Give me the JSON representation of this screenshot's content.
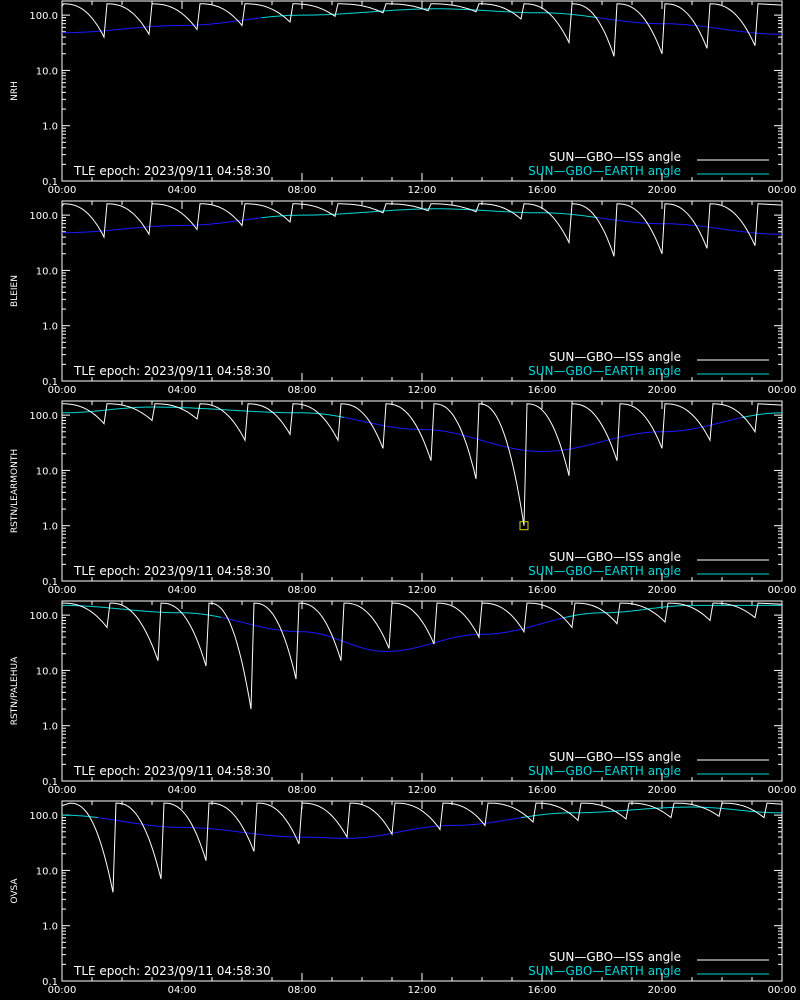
{
  "colors": {
    "background": "#000000",
    "axes": "#ffffff",
    "iss": "#ffffff",
    "earth": "#00d8d8",
    "earth_deep": "#1a1aff",
    "marker": "#d8d800"
  },
  "time_ticks": [
    "00:00",
    "04:00",
    "08:00",
    "12:00",
    "16:00",
    "20:00",
    "00:00"
  ],
  "y_ticks": [
    "0.1",
    "1.0",
    "10.0",
    "100.0"
  ],
  "epoch_label": "TLE epoch: 2023/09/11 04:58:30",
  "legend": {
    "iss": "SUN—GBO—ISS angle",
    "earth": "SUN—GBO—EARTH angle"
  },
  "chart_data": [
    {
      "type": "line",
      "ylabel": "NRH",
      "yscale": "log",
      "ylim": [
        0.1,
        180
      ],
      "xlim_hours": [
        0,
        24
      ],
      "grid": false,
      "legend_position": "bottom-right",
      "earth_angle": {
        "hours": [
          0,
          4,
          8,
          12.5,
          16,
          20,
          24
        ],
        "values": [
          48,
          65,
          100,
          130,
          110,
          70,
          45
        ]
      },
      "iss_angle_minima": {
        "hours": [
          1.4,
          2.9,
          4.5,
          6.0,
          7.6,
          9.1,
          10.7,
          12.2,
          13.8,
          15.3,
          16.9,
          18.4,
          20.0,
          21.5,
          23.1
        ],
        "values": [
          40,
          45,
          55,
          65,
          75,
          95,
          110,
          120,
          115,
          85,
          32,
          18,
          20,
          25,
          28
        ]
      },
      "iss_angle_max": 160,
      "flagged_point": null
    },
    {
      "type": "line",
      "ylabel": "BLEIEN",
      "yscale": "log",
      "ylim": [
        0.1,
        180
      ],
      "xlim_hours": [
        0,
        24
      ],
      "grid": false,
      "legend_position": "bottom-right",
      "earth_angle": {
        "hours": [
          0,
          4,
          8,
          12.5,
          16,
          20,
          24
        ],
        "values": [
          48,
          65,
          100,
          130,
          110,
          70,
          45
        ]
      },
      "iss_angle_minima": {
        "hours": [
          1.4,
          2.9,
          4.5,
          6.0,
          7.6,
          9.1,
          10.7,
          12.2,
          13.8,
          15.3,
          16.9,
          18.4,
          20.0,
          21.5,
          23.1
        ],
        "values": [
          40,
          45,
          55,
          65,
          75,
          95,
          110,
          120,
          115,
          85,
          32,
          18,
          20,
          25,
          28
        ]
      },
      "iss_angle_max": 160,
      "flagged_point": null
    },
    {
      "type": "line",
      "ylabel": "RSTN/LEARMONTH",
      "yscale": "log",
      "ylim": [
        0.1,
        180
      ],
      "xlim_hours": [
        0,
        24
      ],
      "grid": false,
      "legend_position": "bottom-right",
      "earth_angle": {
        "hours": [
          0,
          3,
          8,
          12,
          16,
          20,
          24
        ],
        "values": [
          110,
          140,
          110,
          55,
          22,
          50,
          110
        ]
      },
      "iss_angle_minima": {
        "hours": [
          1.4,
          3.0,
          4.5,
          6.1,
          7.6,
          9.2,
          10.7,
          12.3,
          13.8,
          15.4,
          16.9,
          18.5,
          20.0,
          21.6,
          23.1
        ],
        "values": [
          70,
          80,
          85,
          35,
          45,
          35,
          25,
          15,
          7,
          1,
          8,
          15,
          25,
          35,
          50
        ]
      },
      "iss_angle_max": 160,
      "flagged_point": {
        "hour": 15.4,
        "value": 1.0
      }
    },
    {
      "type": "line",
      "ylabel": "RSTN/PALEHUA",
      "yscale": "log",
      "ylim": [
        0.1,
        180
      ],
      "xlim_hours": [
        0,
        24
      ],
      "grid": false,
      "legend_position": "bottom-right",
      "earth_angle": {
        "hours": [
          0,
          4,
          8,
          10.8,
          14,
          18,
          21,
          24
        ],
        "values": [
          150,
          110,
          50,
          22,
          45,
          110,
          150,
          150
        ]
      },
      "iss_angle_minima": {
        "hours": [
          1.5,
          3.2,
          4.8,
          6.3,
          7.8,
          9.3,
          10.9,
          12.4,
          13.9,
          15.4,
          17.0,
          18.5,
          20.1,
          21.6,
          23.1
        ],
        "values": [
          60,
          15,
          12,
          2,
          7,
          15,
          25,
          30,
          40,
          50,
          60,
          70,
          75,
          80,
          90
        ]
      },
      "iss_angle_max": 165,
      "flagged_point": null
    },
    {
      "type": "line",
      "ylabel": "OVSA",
      "yscale": "log",
      "ylim": [
        0.1,
        180
      ],
      "xlim_hours": [
        0,
        24
      ],
      "grid": false,
      "legend_position": "bottom-right",
      "earth_angle": {
        "hours": [
          0,
          4,
          8,
          9.5,
          13,
          17,
          21,
          24
        ],
        "values": [
          100,
          60,
          40,
          38,
          65,
          110,
          140,
          110
        ]
      },
      "iss_angle_minima": {
        "hours": [
          1.7,
          3.3,
          4.8,
          6.4,
          7.9,
          9.5,
          11.0,
          12.6,
          14.1,
          15.7,
          17.2,
          18.8,
          20.3,
          21.9,
          23.4
        ],
        "values": [
          4,
          7,
          15,
          22,
          30,
          40,
          45,
          55,
          65,
          75,
          80,
          85,
          90,
          95,
          90
        ]
      },
      "iss_angle_max": 165,
      "flagged_point": null
    }
  ]
}
